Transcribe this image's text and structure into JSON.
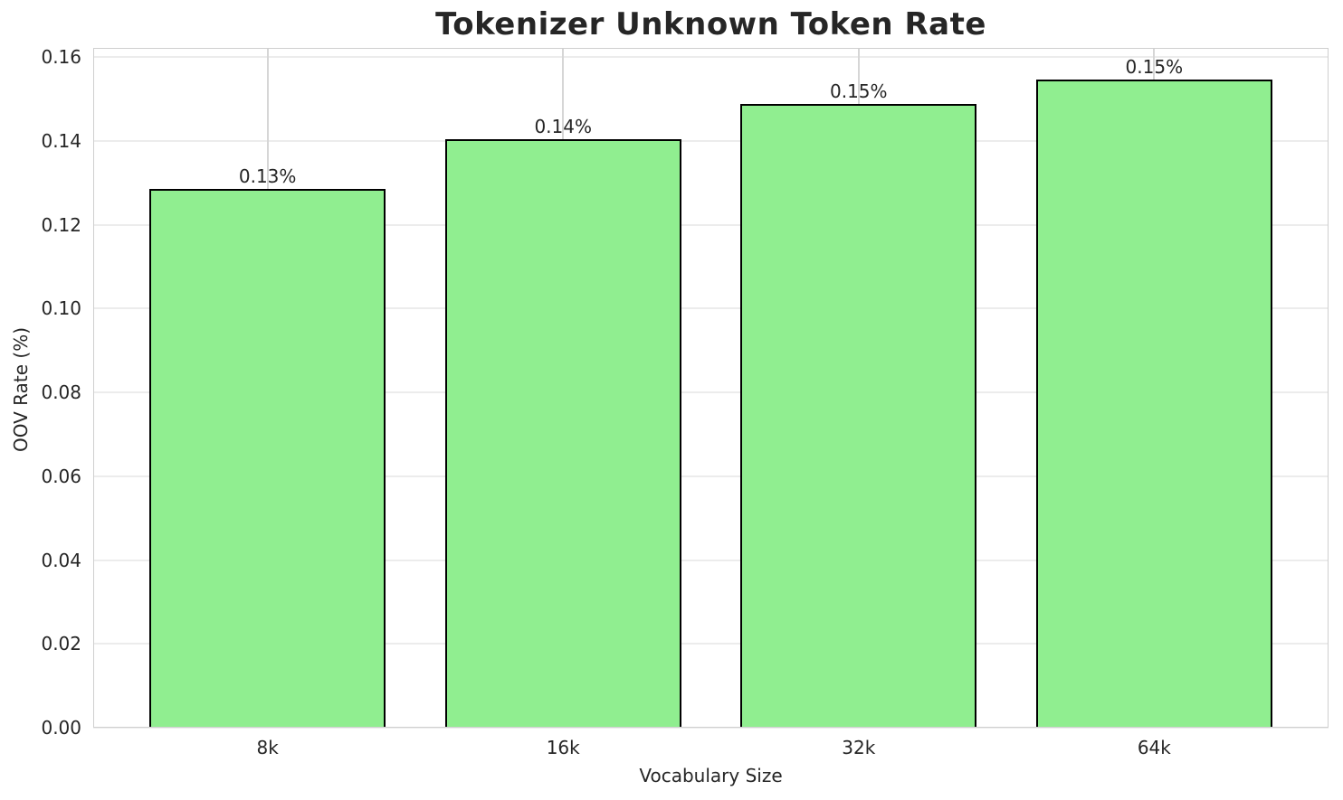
{
  "chart_data": {
    "type": "bar",
    "title": "Tokenizer Unknown Token Rate",
    "xlabel": "Vocabulary Size",
    "ylabel": "OOV Rate (%)",
    "categories": [
      "8k",
      "16k",
      "32k",
      "64k"
    ],
    "values": [
      0.1285,
      0.1404,
      0.1488,
      0.1546
    ],
    "bar_labels": [
      "0.13%",
      "0.14%",
      "0.15%",
      "0.15%"
    ],
    "yticks": [
      0.0,
      0.02,
      0.04,
      0.06,
      0.08,
      0.1,
      0.12,
      0.14,
      0.16
    ],
    "ytick_labels": [
      "0.00",
      "0.02",
      "0.04",
      "0.06",
      "0.08",
      "0.10",
      "0.12",
      "0.14",
      "0.16"
    ],
    "ylim": [
      0,
      0.1622
    ],
    "xlim": [
      -0.59,
      3.59
    ],
    "bar_width_units": 0.8,
    "grid": true,
    "legend_position": "none",
    "colors": {
      "bar_fill": "#90EE90",
      "bar_edge": "#000000",
      "grid_horizontal": "#ececec",
      "grid_vertical": "#d6d6d6",
      "spine": "#cfcfcf",
      "text": "#262626"
    }
  }
}
